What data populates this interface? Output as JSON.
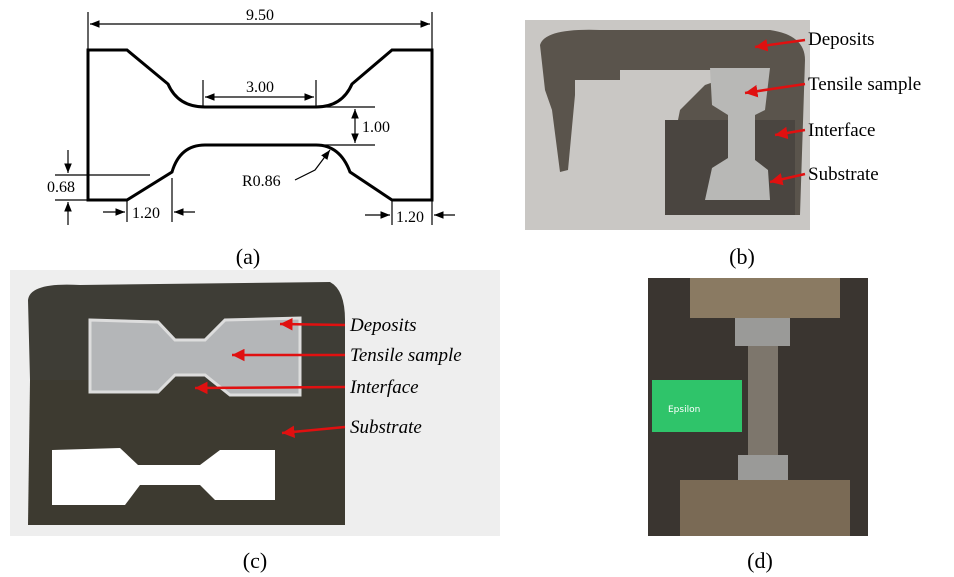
{
  "panels": {
    "a": {
      "label": "(a)",
      "dimensions": {
        "overall_length": "9.50",
        "gauge_length": "3.00",
        "gauge_width": "1.00",
        "grip_step": "0.68",
        "grip_length_left": "1.20",
        "grip_length_right": "1.20",
        "fillet_radius": "R0.86"
      }
    },
    "b": {
      "label": "(b)",
      "annotations": [
        "Deposits",
        "Tensile sample",
        "Interface",
        "Substrate"
      ]
    },
    "c": {
      "label": "(c)",
      "annotations": [
        "Deposits",
        "Tensile sample",
        "Interface",
        "Substrate"
      ]
    },
    "d": {
      "label": "(d)",
      "device_text": "Epsilon"
    }
  }
}
